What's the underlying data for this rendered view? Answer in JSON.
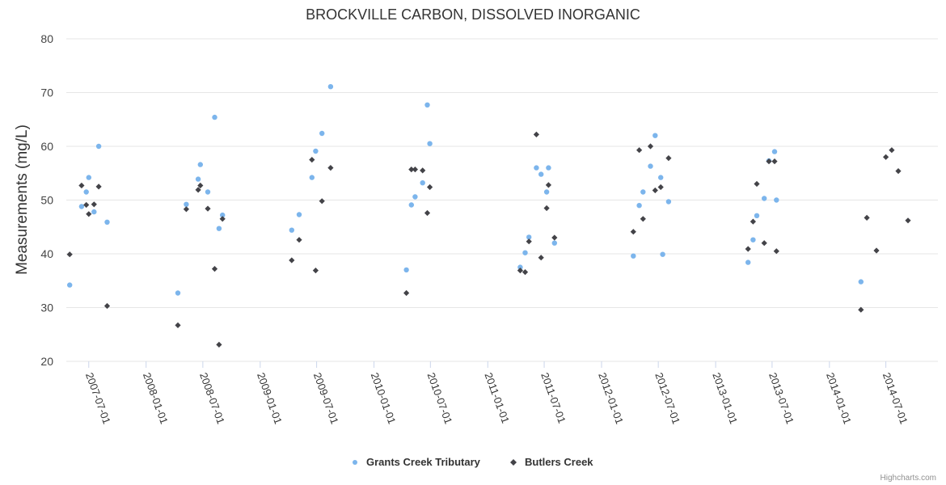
{
  "chart_data": {
    "type": "scatter",
    "title": "BROCKVILLE CARBON, DISSOLVED INORGANIC",
    "ylabel": "Measurements (mg/L)",
    "xlabel": "",
    "ylim": [
      20,
      80
    ],
    "yticks": [
      20,
      30,
      40,
      50,
      60,
      70,
      80
    ],
    "xlim": [
      "2007-04-20",
      "2014-12-15"
    ],
    "xticks": [
      "2007-07-01",
      "2008-01-01",
      "2008-07-01",
      "2009-01-01",
      "2009-07-01",
      "2010-01-01",
      "2010-07-01",
      "2011-01-01",
      "2011-07-01",
      "2012-01-01",
      "2012-07-01",
      "2013-01-01",
      "2013-07-01",
      "2014-01-01",
      "2014-07-01"
    ],
    "grid": true,
    "legend_position": "bottom-center",
    "credits": "Highcharts.com",
    "series": [
      {
        "name": "Grants Creek Tributary",
        "color": "#7cb5ec",
        "marker": "circle",
        "points": [
          [
            "2007-05-01",
            34.2
          ],
          [
            "2007-06-08",
            48.8
          ],
          [
            "2007-06-23",
            51.5
          ],
          [
            "2007-07-01",
            54.2
          ],
          [
            "2007-07-18",
            47.8
          ],
          [
            "2007-08-02",
            60.0
          ],
          [
            "2007-08-29",
            45.9
          ],
          [
            "2008-04-12",
            32.7
          ],
          [
            "2008-05-09",
            49.2
          ],
          [
            "2008-06-16",
            53.9
          ],
          [
            "2008-06-23",
            56.6
          ],
          [
            "2008-07-17",
            51.5
          ],
          [
            "2008-08-08",
            65.4
          ],
          [
            "2008-08-22",
            44.7
          ],
          [
            "2008-09-02",
            47.2
          ],
          [
            "2009-04-12",
            44.4
          ],
          [
            "2009-05-06",
            47.3
          ],
          [
            "2009-06-16",
            54.2
          ],
          [
            "2009-06-28",
            59.1
          ],
          [
            "2009-07-18",
            62.4
          ],
          [
            "2009-08-15",
            71.1
          ],
          [
            "2010-04-15",
            37.0
          ],
          [
            "2010-05-01",
            49.1
          ],
          [
            "2010-05-13",
            50.6
          ],
          [
            "2010-06-06",
            53.2
          ],
          [
            "2010-06-21",
            67.7
          ],
          [
            "2010-06-29",
            60.5
          ],
          [
            "2011-04-15",
            37.5
          ],
          [
            "2011-05-01",
            40.2
          ],
          [
            "2011-05-13",
            43.1
          ],
          [
            "2011-06-06",
            56.0
          ],
          [
            "2011-06-21",
            54.8
          ],
          [
            "2011-07-09",
            51.5
          ],
          [
            "2011-07-15",
            56.0
          ],
          [
            "2011-08-03",
            42.0
          ],
          [
            "2012-04-12",
            39.6
          ],
          [
            "2012-05-01",
            49.0
          ],
          [
            "2012-05-13",
            51.5
          ],
          [
            "2012-06-06",
            56.3
          ],
          [
            "2012-06-21",
            62.0
          ],
          [
            "2012-07-09",
            54.2
          ],
          [
            "2012-07-15",
            39.9
          ],
          [
            "2012-08-03",
            49.7
          ],
          [
            "2013-04-15",
            38.4
          ],
          [
            "2013-05-01",
            42.6
          ],
          [
            "2013-05-13",
            47.1
          ],
          [
            "2013-06-06",
            50.3
          ],
          [
            "2013-06-21",
            57.3
          ],
          [
            "2013-07-09",
            59.0
          ],
          [
            "2013-07-15",
            50.0
          ],
          [
            "2014-04-12",
            34.8
          ]
        ]
      },
      {
        "name": "Butlers Creek",
        "color": "#434348",
        "marker": "diamond",
        "points": [
          [
            "2007-05-01",
            39.9
          ],
          [
            "2007-06-08",
            52.7
          ],
          [
            "2007-06-23",
            49.1
          ],
          [
            "2007-07-01",
            47.4
          ],
          [
            "2007-07-18",
            49.2
          ],
          [
            "2007-08-02",
            52.5
          ],
          [
            "2007-08-29",
            30.3
          ],
          [
            "2008-04-12",
            26.7
          ],
          [
            "2008-05-09",
            48.3
          ],
          [
            "2008-06-16",
            51.9
          ],
          [
            "2008-06-23",
            52.7
          ],
          [
            "2008-07-17",
            48.4
          ],
          [
            "2008-08-08",
            37.2
          ],
          [
            "2008-08-22",
            23.1
          ],
          [
            "2008-09-02",
            46.5
          ],
          [
            "2009-04-12",
            38.8
          ],
          [
            "2009-05-06",
            42.6
          ],
          [
            "2009-06-16",
            57.5
          ],
          [
            "2009-06-28",
            36.9
          ],
          [
            "2009-07-18",
            49.8
          ],
          [
            "2009-08-15",
            56.0
          ],
          [
            "2010-04-15",
            32.7
          ],
          [
            "2010-05-01",
            55.7
          ],
          [
            "2010-05-13",
            55.7
          ],
          [
            "2010-06-06",
            55.5
          ],
          [
            "2010-06-21",
            47.6
          ],
          [
            "2010-06-29",
            52.4
          ],
          [
            "2011-04-15",
            36.9
          ],
          [
            "2011-05-01",
            36.6
          ],
          [
            "2011-05-13",
            42.3
          ],
          [
            "2011-06-06",
            62.2
          ],
          [
            "2011-06-21",
            39.3
          ],
          [
            "2011-07-09",
            48.5
          ],
          [
            "2011-07-15",
            52.8
          ],
          [
            "2011-08-03",
            43.0
          ],
          [
            "2012-04-12",
            44.1
          ],
          [
            "2012-05-01",
            59.3
          ],
          [
            "2012-05-13",
            46.5
          ],
          [
            "2012-06-06",
            60.0
          ],
          [
            "2012-06-21",
            51.8
          ],
          [
            "2012-07-09",
            52.4
          ],
          [
            "2012-08-03",
            57.8
          ],
          [
            "2013-04-15",
            40.9
          ],
          [
            "2013-05-01",
            46.0
          ],
          [
            "2013-05-13",
            53.0
          ],
          [
            "2013-06-06",
            42.0
          ],
          [
            "2013-06-21",
            57.2
          ],
          [
            "2013-07-09",
            57.2
          ],
          [
            "2013-07-15",
            40.5
          ],
          [
            "2014-04-12",
            29.6
          ],
          [
            "2014-05-01",
            46.7
          ],
          [
            "2014-06-01",
            40.6
          ],
          [
            "2014-07-01",
            58.0
          ],
          [
            "2014-07-20",
            59.3
          ],
          [
            "2014-08-10",
            55.4
          ],
          [
            "2014-09-10",
            46.2
          ]
        ]
      }
    ]
  }
}
